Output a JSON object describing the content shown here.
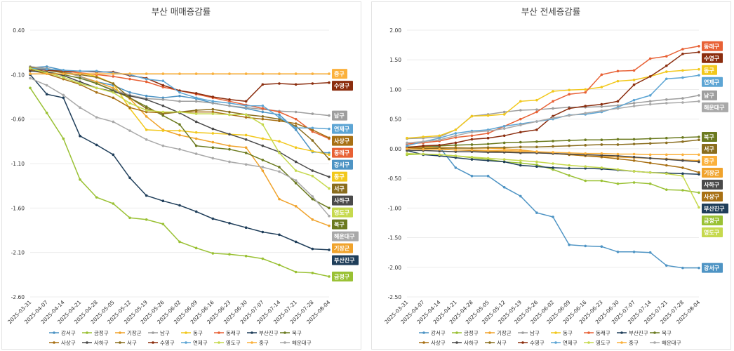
{
  "chart_data": [
    {
      "type": "line",
      "title": "부산 매매증감률",
      "x": [
        "2025-03-31",
        "2025-04-07",
        "2025-04-14",
        "2025-04-21",
        "2025-04-28",
        "2025-05-05",
        "2025-05-12",
        "2025-05-19",
        "2025-05-26",
        "2025-06-02",
        "2025-06-09",
        "2025-06-16",
        "2025-06-23",
        "2025-06-30",
        "2025-07-07",
        "2025-07-14",
        "2025-07-21",
        "2025-07-28",
        "2025-08-04"
      ],
      "ylim": [
        -2.6,
        0.4
      ],
      "yticks": [
        "0.40",
        "-0.10",
        "-0.60",
        "-1.10",
        "-1.60",
        "-2.10",
        "-2.60"
      ],
      "series": [
        {
          "name": "강서구",
          "color": "#4e94c4",
          "values": [
            -0.02,
            -0.01,
            -0.05,
            -0.12,
            -0.18,
            -0.22,
            -0.3,
            -0.34,
            -0.36,
            -0.34,
            -0.37,
            -0.42,
            -0.45,
            -0.48,
            -0.52,
            -0.55,
            -0.72,
            -0.97,
            -0.98
          ]
        },
        {
          "name": "금정구",
          "color": "#9ac134",
          "values": [
            -0.25,
            -0.53,
            -0.82,
            -1.28,
            -1.48,
            -1.55,
            -1.71,
            -1.73,
            -1.78,
            -1.98,
            -2.05,
            -2.11,
            -2.12,
            -2.14,
            -2.17,
            -2.24,
            -2.32,
            -2.33,
            -2.37
          ]
        },
        {
          "name": "기장군",
          "color": "#f0a32c",
          "values": [
            -0.02,
            -0.04,
            -0.07,
            -0.12,
            -0.18,
            -0.25,
            -0.37,
            -0.57,
            -0.72,
            -0.78,
            -0.82,
            -0.86,
            -0.9,
            -0.92,
            -1.18,
            -1.5,
            -1.58,
            -1.73,
            -1.8
          ]
        },
        {
          "name": "남구",
          "color": "#9e9e9e",
          "values": [
            -0.01,
            -0.03,
            -0.06,
            -0.12,
            -0.2,
            -0.27,
            -0.33,
            -0.37,
            -0.38,
            -0.4,
            -0.4,
            -0.42,
            -0.45,
            -0.47,
            -0.49,
            -0.51,
            -0.52,
            -0.54,
            -0.56
          ]
        },
        {
          "name": "동구",
          "color": "#f2c81c",
          "values": [
            -0.05,
            -0.04,
            -0.06,
            -0.08,
            -0.12,
            -0.2,
            -0.48,
            -0.72,
            -0.73,
            -0.73,
            -0.75,
            -0.76,
            -0.77,
            -0.78,
            -0.82,
            -0.85,
            -0.92,
            -0.96,
            -1.0
          ]
        },
        {
          "name": "동래구",
          "color": "#e86135",
          "values": [
            -0.04,
            -0.05,
            -0.06,
            -0.08,
            -0.1,
            -0.12,
            -0.15,
            -0.18,
            -0.24,
            -0.28,
            -0.32,
            -0.36,
            -0.4,
            -0.44,
            -0.48,
            -0.52,
            -0.6,
            -0.74,
            -0.82
          ]
        },
        {
          "name": "부산진구",
          "color": "#1f3e5a",
          "values": [
            -0.1,
            -0.32,
            -0.36,
            -0.79,
            -0.89,
            -1.0,
            -1.26,
            -1.46,
            -1.52,
            -1.57,
            -1.64,
            -1.72,
            -1.77,
            -1.82,
            -1.87,
            -1.9,
            -1.98,
            -2.06,
            -2.07
          ]
        },
        {
          "name": "북구",
          "color": "#6b7a1f",
          "values": [
            -0.04,
            -0.07,
            -0.1,
            -0.14,
            -0.2,
            -0.28,
            -0.36,
            -0.46,
            -0.56,
            -0.66,
            -0.9,
            -0.92,
            -0.94,
            -0.98,
            -1.06,
            -1.14,
            -1.32,
            -1.5,
            -1.6
          ]
        },
        {
          "name": "사상구",
          "color": "#a87014",
          "values": [
            -0.05,
            -0.09,
            -0.15,
            -0.21,
            -0.3,
            -0.36,
            -0.47,
            -0.52,
            -0.53,
            -0.52,
            -0.52,
            -0.52,
            -0.55,
            -0.58,
            -0.6,
            -0.62,
            -0.65,
            -0.72,
            -0.81
          ]
        },
        {
          "name": "사하구",
          "color": "#4a4a4a",
          "values": [
            -0.06,
            -0.07,
            -0.11,
            -0.18,
            -0.25,
            -0.29,
            -0.34,
            -0.38,
            -0.45,
            -0.53,
            -0.63,
            -0.71,
            -0.77,
            -0.83,
            -0.9,
            -0.97,
            -1.08,
            -1.18,
            -1.25
          ]
        },
        {
          "name": "서구",
          "color": "#8a6d1e",
          "values": [
            -0.02,
            -0.05,
            -0.08,
            -0.1,
            -0.13,
            -0.2,
            -0.36,
            -0.48,
            -0.54,
            -0.52,
            -0.5,
            -0.49,
            -0.52,
            -0.55,
            -0.57,
            -0.6,
            -0.68,
            -0.84,
            -1.05
          ]
        },
        {
          "name": "수영구",
          "color": "#8b2d0e",
          "values": [
            -0.04,
            -0.05,
            -0.06,
            -0.06,
            -0.07,
            -0.07,
            -0.11,
            -0.14,
            -0.22,
            -0.28,
            -0.31,
            -0.35,
            -0.38,
            -0.4,
            -0.21,
            -0.2,
            -0.21,
            -0.2,
            -0.19
          ]
        },
        {
          "name": "연제구",
          "color": "#5da5d4",
          "values": [
            -0.03,
            -0.04,
            -0.05,
            -0.06,
            -0.06,
            -0.08,
            -0.1,
            -0.15,
            -0.17,
            -0.3,
            -0.36,
            -0.4,
            -0.42,
            -0.45,
            -0.45,
            -0.58,
            -0.7,
            -0.7,
            -0.71
          ]
        },
        {
          "name": "영도구",
          "color": "#c6d94e",
          "values": [
            -0.03,
            -0.08,
            -0.13,
            -0.2,
            -0.25,
            -0.3,
            -0.42,
            -0.5,
            -0.52,
            -0.52,
            -0.54,
            -0.54,
            -0.55,
            -0.55,
            -0.66,
            -0.98,
            -1.18,
            -1.24,
            -1.38
          ]
        },
        {
          "name": "중구",
          "color": "#fbb13c",
          "values": [
            -0.09,
            -0.09,
            -0.09,
            -0.09,
            -0.09,
            -0.09,
            -0.09,
            -0.09,
            -0.09,
            -0.09,
            -0.09,
            -0.09,
            -0.09,
            -0.09,
            -0.09,
            -0.09,
            -0.09,
            -0.09,
            -0.09
          ]
        },
        {
          "name": "해운대구",
          "color": "#a9a9a9",
          "values": [
            -0.14,
            -0.22,
            -0.33,
            -0.47,
            -0.58,
            -0.63,
            -0.73,
            -0.83,
            -0.9,
            -0.94,
            -0.99,
            -1.04,
            -1.08,
            -1.11,
            -1.14,
            -1.19,
            -1.29,
            -1.47,
            -1.69
          ]
        }
      ],
      "end_labels": [
        {
          "name": "중구",
          "value": -0.09,
          "color": "#fbb13c"
        },
        {
          "name": "수영구",
          "value": -0.19,
          "color": "#8b2d0e"
        },
        {
          "name": "남구",
          "value": -0.56,
          "color": "#9e9e9e"
        },
        {
          "name": "연제구",
          "value": -0.71,
          "color": "#5da5d4"
        },
        {
          "name": "사상구",
          "value": -0.81,
          "color": "#a87014"
        },
        {
          "name": "동래구",
          "value": -0.82,
          "color": "#e86135"
        },
        {
          "name": "강서구",
          "value": -0.98,
          "color": "#4e94c4"
        },
        {
          "name": "동구",
          "value": -1.0,
          "color": "#f2c81c"
        },
        {
          "name": "서구",
          "value": -1.05,
          "color": "#8a6d1e"
        },
        {
          "name": "사하구",
          "value": -1.25,
          "color": "#4a4a4a"
        },
        {
          "name": "영도구",
          "value": -1.38,
          "color": "#c6d94e"
        },
        {
          "name": "북구",
          "value": -1.6,
          "color": "#6b7a1f"
        },
        {
          "name": "해운대구",
          "value": -1.69,
          "color": "#a9a9a9"
        },
        {
          "name": "기장군",
          "value": -1.8,
          "color": "#f0a32c"
        },
        {
          "name": "부산진구",
          "value": -2.07,
          "color": "#1f3e5a"
        },
        {
          "name": "금정구",
          "value": -2.37,
          "color": "#9ac134"
        }
      ]
    },
    {
      "type": "line",
      "title": "부산 전세증감률",
      "x": [
        "2025-03-31",
        "2025-04-07",
        "2025-04-14",
        "2025-04-21",
        "2025-04-28",
        "2025-05-05",
        "2025-05-12",
        "2025-05-19",
        "2025-05-26",
        "2025-06-02",
        "2025-06-09",
        "2025-06-16",
        "2025-06-23",
        "2025-06-30",
        "2025-07-07",
        "2025-07-14",
        "2025-07-21",
        "2025-07-28",
        "2025-08-04"
      ],
      "ylim": [
        -2.5,
        2.0
      ],
      "yticks": [
        "2.00",
        "1.50",
        "1.00",
        "0.50",
        "0.00",
        "-0.50",
        "-1.00",
        "-1.50",
        "-2.00",
        "-2.50"
      ],
      "series": [
        {
          "name": "강서구",
          "color": "#4e94c4",
          "values": [
            -0.02,
            0.05,
            0.03,
            -0.32,
            -0.46,
            -0.46,
            -0.65,
            -0.8,
            -1.08,
            -1.15,
            -1.62,
            -1.64,
            -1.65,
            -1.74,
            -1.74,
            -1.75,
            -1.97,
            -2.01,
            -2.01
          ]
        },
        {
          "name": "금정구",
          "color": "#9ac134",
          "values": [
            -0.1,
            -0.09,
            -0.1,
            -0.12,
            -0.15,
            -0.18,
            -0.22,
            -0.24,
            -0.27,
            -0.35,
            -0.45,
            -0.54,
            -0.54,
            -0.59,
            -0.57,
            -0.59,
            -0.69,
            -0.7,
            -0.74
          ]
        },
        {
          "name": "기장군",
          "color": "#f0a32c",
          "values": [
            0.03,
            0.03,
            0.02,
            0.02,
            0.01,
            0.01,
            0.0,
            -0.02,
            -0.05,
            -0.08,
            -0.1,
            -0.12,
            -0.13,
            -0.14,
            -0.15,
            -0.16,
            -0.17,
            -0.19,
            -0.2
          ]
        },
        {
          "name": "남구",
          "color": "#9e9e9e",
          "values": [
            0.17,
            0.18,
            0.2,
            0.32,
            0.55,
            0.58,
            0.62,
            0.65,
            0.66,
            0.68,
            0.7,
            0.7,
            0.71,
            0.73,
            0.77,
            0.8,
            0.83,
            0.85,
            0.9
          ]
        },
        {
          "name": "동구",
          "color": "#f2c81c",
          "values": [
            0.18,
            0.2,
            0.22,
            0.32,
            0.55,
            0.56,
            0.58,
            0.8,
            0.82,
            0.97,
            0.99,
            1.0,
            1.04,
            1.14,
            1.16,
            1.22,
            1.3,
            1.32,
            1.34
          ]
        },
        {
          "name": "동래구",
          "color": "#e86135",
          "values": [
            0.08,
            0.1,
            0.13,
            0.19,
            0.22,
            0.26,
            0.38,
            0.5,
            0.62,
            0.8,
            0.92,
            0.95,
            1.25,
            1.31,
            1.32,
            1.52,
            1.56,
            1.68,
            1.73
          ]
        },
        {
          "name": "부산진구",
          "color": "#1f3e5a",
          "values": [
            -0.03,
            -0.1,
            -0.12,
            -0.15,
            -0.18,
            -0.2,
            -0.22,
            -0.28,
            -0.3,
            -0.32,
            -0.33,
            -0.33,
            -0.34,
            -0.36,
            -0.38,
            -0.4,
            -0.41,
            -0.42,
            -0.43
          ]
        },
        {
          "name": "북구",
          "color": "#6b7a1f",
          "values": [
            0.03,
            0.04,
            0.05,
            0.06,
            0.07,
            0.08,
            0.1,
            0.11,
            0.12,
            0.13,
            0.14,
            0.15,
            0.15,
            0.16,
            0.16,
            0.17,
            0.18,
            0.19,
            0.2
          ]
        },
        {
          "name": "사상구",
          "color": "#a87014",
          "values": [
            0.02,
            0.01,
            0.0,
            -0.02,
            -0.03,
            -0.04,
            -0.05,
            -0.06,
            -0.07,
            -0.08,
            -0.1,
            -0.12,
            -0.14,
            -0.17,
            -0.2,
            -0.24,
            -0.28,
            -0.32,
            -0.4
          ]
        },
        {
          "name": "사하구",
          "color": "#4a4a4a",
          "values": [
            -0.03,
            -0.03,
            -0.04,
            -0.05,
            -0.05,
            -0.06,
            -0.06,
            -0.07,
            -0.07,
            -0.08,
            -0.09,
            -0.1,
            -0.11,
            -0.12,
            -0.14,
            -0.16,
            -0.18,
            -0.2,
            -0.22
          ]
        },
        {
          "name": "서구",
          "color": "#8a6d1e",
          "values": [
            0.0,
            0.0,
            0.01,
            0.01,
            0.01,
            0.02,
            0.02,
            0.03,
            0.03,
            0.04,
            0.05,
            0.06,
            0.07,
            0.07,
            0.08,
            0.09,
            0.1,
            0.12,
            0.15
          ]
        },
        {
          "name": "수영구",
          "color": "#8b2d0e",
          "values": [
            0.02,
            0.05,
            0.06,
            0.1,
            0.16,
            0.18,
            0.22,
            0.28,
            0.32,
            0.55,
            0.68,
            0.72,
            0.75,
            0.8,
            1.08,
            1.22,
            1.4,
            1.6,
            1.63
          ]
        },
        {
          "name": "연제구",
          "color": "#5da5d4",
          "values": [
            0.05,
            0.12,
            0.18,
            0.26,
            0.3,
            0.32,
            0.38,
            0.42,
            0.46,
            0.5,
            0.57,
            0.58,
            0.62,
            0.7,
            0.82,
            0.9,
            1.18,
            1.2,
            1.24
          ]
        },
        {
          "name": "영도구",
          "color": "#c6d94e",
          "values": [
            -0.08,
            -0.09,
            -0.1,
            -0.12,
            -0.14,
            -0.16,
            -0.18,
            -0.2,
            -0.22,
            -0.25,
            -0.28,
            -0.3,
            -0.32,
            -0.35,
            -0.38,
            -0.4,
            -0.42,
            -0.46,
            -0.99
          ]
        },
        {
          "name": "중구",
          "color": "#fbb13c",
          "values": [
            0.0,
            -0.01,
            -0.01,
            -0.02,
            -0.02,
            -0.03,
            -0.03,
            -0.04,
            -0.05,
            -0.06,
            -0.07,
            -0.08,
            -0.08,
            -0.09,
            -0.09,
            -0.1,
            -0.1,
            -0.1,
            -0.1
          ]
        },
        {
          "name": "해운대구",
          "color": "#a9a9a9",
          "values": [
            0.1,
            0.12,
            0.15,
            0.22,
            0.28,
            0.3,
            0.34,
            0.4,
            0.46,
            0.52,
            0.56,
            0.6,
            0.64,
            0.68,
            0.72,
            0.75,
            0.77,
            0.78,
            0.8
          ]
        }
      ],
      "end_labels": [
        {
          "name": "동래구",
          "value": 1.73,
          "color": "#e86135"
        },
        {
          "name": "수영구",
          "value": 1.63,
          "color": "#8b2d0e"
        },
        {
          "name": "동구",
          "value": 1.34,
          "color": "#f2c81c"
        },
        {
          "name": "연제구",
          "value": 1.24,
          "color": "#5da5d4"
        },
        {
          "name": "남구",
          "value": 0.9,
          "color": "#9e9e9e"
        },
        {
          "name": "해운대구",
          "value": 0.8,
          "color": "#a9a9a9"
        },
        {
          "name": "북구",
          "value": 0.2,
          "color": "#6b7a1f"
        },
        {
          "name": "서구",
          "value": 0.15,
          "color": "#8a6d1e"
        },
        {
          "name": "중구",
          "value": -0.1,
          "color": "#fbb13c"
        },
        {
          "name": "기장군",
          "value": -0.2,
          "color": "#f0a32c"
        },
        {
          "name": "사상구",
          "value": -0.4,
          "color": "#a87014"
        },
        {
          "name": "사하구",
          "value": -0.22,
          "color": "#4a4a4a"
        },
        {
          "name": "부산진구",
          "value": -0.43,
          "color": "#1f3e5a"
        },
        {
          "name": "영도구",
          "value": -0.99,
          "color": "#c6d94e"
        },
        {
          "name": "금정구",
          "value": -0.74,
          "color": "#9ac134"
        },
        {
          "name": "강서구",
          "value": -2.01,
          "color": "#4e94c4"
        }
      ]
    }
  ]
}
